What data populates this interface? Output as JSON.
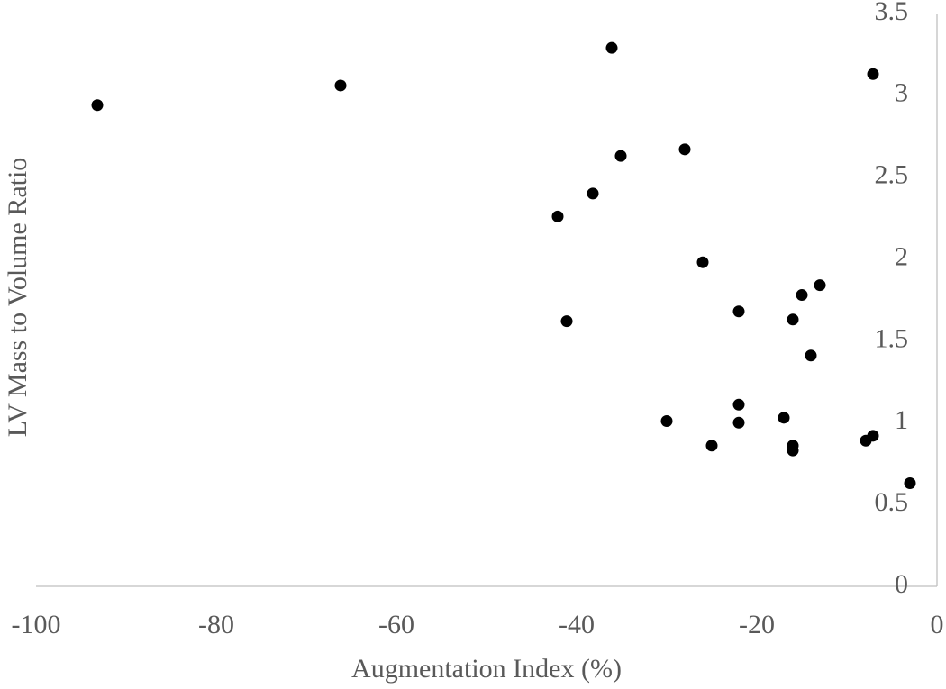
{
  "chart_data": {
    "type": "scatter",
    "x_label": "Augmentation Index (%)",
    "y_label": "LV Mass to Volume Ratio",
    "xlim": [
      -100,
      0
    ],
    "xticks": [
      -100,
      -80,
      -60,
      -40,
      -20,
      0
    ],
    "ylim": [
      0,
      3.5
    ],
    "yticks": [
      0,
      0.5,
      1,
      1.5,
      2,
      2.5,
      3,
      3.5
    ],
    "grid": false,
    "series": [
      {
        "color": "#000000",
        "x": [
          -93.2,
          -66.2,
          -36.1,
          -7.1,
          -35.1,
          -28,
          -38.2,
          -42.1,
          -26,
          -13,
          -15,
          -22,
          -16,
          -41.1,
          -14,
          -22,
          -30,
          -22,
          -17,
          -25,
          -16,
          -16,
          -7.1,
          -7.9,
          -3
        ],
        "values": [
          2.94,
          3.06,
          3.29,
          3.13,
          2.63,
          2.67,
          2.4,
          2.26,
          1.98,
          1.84,
          1.78,
          1.68,
          1.63,
          1.62,
          1.41,
          1.11,
          1.01,
          1.0,
          1.03,
          0.86,
          0.86,
          0.83,
          0.92,
          0.89,
          0.63
        ]
      }
    ]
  }
}
